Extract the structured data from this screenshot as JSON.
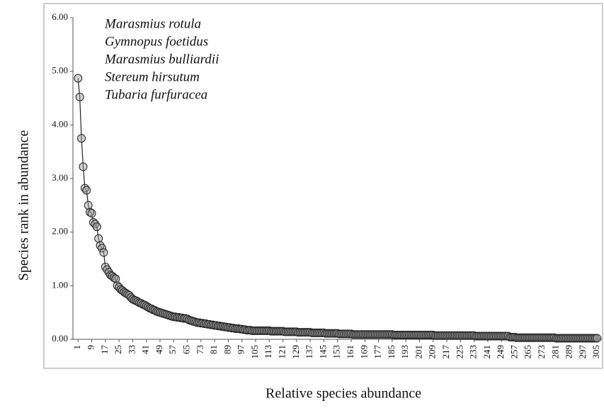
{
  "chart_data": {
    "type": "line",
    "x_label": "Relative species abundance",
    "y_label": "Species rank in abundance",
    "annotations": [
      "Marasmius rotula",
      "Gymnopus foetidus",
      "Marasmius bulliardii",
      "Stereum hirsutum",
      "Tubaria furfuracea"
    ],
    "xlim": [
      -2,
      307
    ],
    "ylim": [
      0,
      6
    ],
    "yticks": [
      {
        "value": 0,
        "label": "0.00"
      },
      {
        "value": 1,
        "label": "1.00"
      },
      {
        "value": 2,
        "label": "2.00"
      },
      {
        "value": 3,
        "label": "3.00"
      },
      {
        "value": 4,
        "label": "4.00"
      },
      {
        "value": 5,
        "label": "5.00"
      },
      {
        "value": 6,
        "label": "6.00"
      }
    ],
    "xticks": [
      1,
      9,
      17,
      25,
      33,
      41,
      49,
      57,
      65,
      73,
      81,
      89,
      97,
      105,
      113,
      121,
      129,
      137,
      145,
      153,
      161,
      169,
      177,
      185,
      193,
      201,
      209,
      217,
      225,
      233,
      241,
      249,
      257,
      265,
      273,
      281,
      289,
      297,
      305
    ],
    "grid": false,
    "series": [
      {
        "color": "#222222",
        "marker_color": "#999999",
        "x": [
          1,
          2,
          3,
          4,
          5,
          6,
          7,
          8,
          9,
          10,
          11,
          12,
          13,
          14,
          15,
          16,
          17,
          18,
          19,
          20,
          21,
          22,
          23,
          24,
          25,
          26,
          27,
          28,
          29,
          30,
          31,
          32,
          33,
          34,
          35,
          36,
          37,
          38,
          39,
          40,
          41,
          42,
          43,
          44,
          45,
          46,
          47,
          48,
          49,
          50,
          51,
          52,
          53,
          54,
          55,
          56,
          57,
          58,
          59,
          60,
          61,
          62,
          63,
          64,
          65,
          66,
          67,
          68,
          69,
          70,
          71,
          72,
          73,
          74,
          75,
          76,
          77,
          78,
          79,
          80,
          81,
          82,
          83,
          84,
          85,
          86,
          87,
          88,
          89,
          90,
          91,
          92,
          93,
          94,
          95,
          96,
          97,
          98,
          99,
          100,
          101,
          102,
          103,
          104,
          105,
          106,
          107,
          108,
          109,
          110,
          111,
          112,
          113,
          114,
          115,
          116,
          117,
          118,
          119,
          120,
          121,
          122,
          123,
          124,
          125,
          126,
          127,
          128,
          129,
          130,
          131,
          132,
          133,
          134,
          135,
          136,
          137,
          138,
          139,
          140,
          141,
          142,
          143,
          144,
          145,
          146,
          147,
          148,
          149,
          150,
          151,
          152,
          153,
          154,
          155,
          156,
          157,
          158,
          159,
          160,
          161,
          162,
          163,
          164,
          165,
          166,
          167,
          168,
          169,
          170,
          171,
          172,
          173,
          174,
          175,
          176,
          177,
          178,
          179,
          180,
          181,
          182,
          183,
          184,
          185,
          186,
          187,
          188,
          189,
          190,
          191,
          192,
          193,
          194,
          195,
          196,
          197,
          198,
          199,
          200,
          201,
          202,
          203,
          204,
          205,
          206,
          207,
          208,
          209,
          210,
          211,
          212,
          213,
          214,
          215,
          216,
          217,
          218,
          219,
          220,
          221,
          222,
          223,
          224,
          225,
          226,
          227,
          228,
          229,
          230,
          231,
          232,
          233,
          234,
          235,
          236,
          237,
          238,
          239,
          240,
          241,
          242,
          243,
          244,
          245,
          246,
          247,
          248,
          249,
          250,
          251,
          252,
          253,
          254,
          255,
          256,
          257,
          258,
          259,
          260,
          261,
          262,
          263,
          264,
          265,
          266,
          267,
          268,
          269,
          270,
          271,
          272,
          273,
          274,
          275,
          276,
          277,
          278,
          279,
          280,
          281,
          282,
          283,
          284,
          285,
          286,
          287,
          288,
          289,
          290,
          291,
          292,
          293,
          294,
          295,
          296,
          297,
          298,
          299,
          300,
          301,
          302,
          303,
          304,
          305
        ],
        "values": [
          4.87,
          4.52,
          3.75,
          3.22,
          2.82,
          2.78,
          2.5,
          2.37,
          2.35,
          2.18,
          2.15,
          2.1,
          1.88,
          1.75,
          1.7,
          1.62,
          1.35,
          1.3,
          1.25,
          1.2,
          1.18,
          1.15,
          1.13,
          1.0,
          0.97,
          0.93,
          0.91,
          0.88,
          0.86,
          0.84,
          0.82,
          0.78,
          0.75,
          0.73,
          0.72,
          0.7,
          0.68,
          0.67,
          0.65,
          0.64,
          0.62,
          0.6,
          0.58,
          0.57,
          0.55,
          0.54,
          0.52,
          0.51,
          0.5,
          0.49,
          0.48,
          0.47,
          0.46,
          0.45,
          0.44,
          0.43,
          0.42,
          0.42,
          0.41,
          0.41,
          0.4,
          0.4,
          0.39,
          0.39,
          0.38,
          0.36,
          0.35,
          0.34,
          0.33,
          0.32,
          0.31,
          0.31,
          0.3,
          0.3,
          0.29,
          0.29,
          0.28,
          0.28,
          0.27,
          0.27,
          0.26,
          0.26,
          0.25,
          0.25,
          0.24,
          0.24,
          0.23,
          0.23,
          0.22,
          0.22,
          0.21,
          0.21,
          0.2,
          0.2,
          0.2,
          0.19,
          0.19,
          0.18,
          0.18,
          0.17,
          0.17,
          0.17,
          0.16,
          0.16,
          0.16,
          0.16,
          0.16,
          0.16,
          0.16,
          0.16,
          0.16,
          0.16,
          0.16,
          0.15,
          0.15,
          0.15,
          0.15,
          0.15,
          0.15,
          0.15,
          0.15,
          0.14,
          0.14,
          0.14,
          0.14,
          0.14,
          0.14,
          0.14,
          0.14,
          0.13,
          0.13,
          0.13,
          0.13,
          0.13,
          0.13,
          0.13,
          0.13,
          0.12,
          0.12,
          0.12,
          0.12,
          0.12,
          0.12,
          0.12,
          0.12,
          0.11,
          0.11,
          0.11,
          0.11,
          0.11,
          0.11,
          0.11,
          0.11,
          0.1,
          0.1,
          0.1,
          0.1,
          0.1,
          0.1,
          0.1,
          0.1,
          0.09,
          0.09,
          0.09,
          0.09,
          0.09,
          0.09,
          0.09,
          0.09,
          0.09,
          0.09,
          0.09,
          0.09,
          0.09,
          0.09,
          0.09,
          0.09,
          0.09,
          0.09,
          0.09,
          0.09,
          0.09,
          0.09,
          0.09,
          0.09,
          0.08,
          0.08,
          0.08,
          0.08,
          0.08,
          0.08,
          0.08,
          0.08,
          0.08,
          0.08,
          0.08,
          0.08,
          0.08,
          0.08,
          0.08,
          0.08,
          0.08,
          0.08,
          0.08,
          0.08,
          0.08,
          0.08,
          0.08,
          0.08,
          0.07,
          0.07,
          0.07,
          0.07,
          0.07,
          0.07,
          0.07,
          0.07,
          0.07,
          0.07,
          0.07,
          0.07,
          0.07,
          0.07,
          0.07,
          0.07,
          0.07,
          0.07,
          0.07,
          0.07,
          0.07,
          0.07,
          0.07,
          0.07,
          0.06,
          0.06,
          0.06,
          0.06,
          0.06,
          0.06,
          0.06,
          0.06,
          0.06,
          0.06,
          0.06,
          0.06,
          0.06,
          0.06,
          0.06,
          0.06,
          0.06,
          0.06,
          0.06,
          0.06,
          0.04,
          0.04,
          0.04,
          0.04,
          0.03,
          0.03,
          0.03,
          0.03,
          0.03,
          0.03,
          0.03,
          0.03,
          0.03,
          0.03,
          0.03,
          0.03,
          0.03,
          0.03,
          0.03,
          0.03,
          0.03,
          0.03,
          0.03,
          0.03,
          0.03,
          0.03,
          0.03,
          0.02,
          0.02,
          0.02,
          0.02,
          0.02,
          0.02,
          0.02,
          0.02,
          0.02,
          0.02,
          0.02,
          0.02,
          0.02,
          0.02,
          0.02,
          0.02,
          0.02,
          0.02,
          0.02,
          0.02,
          0.02,
          0.02,
          0.02,
          0.02,
          0.02
        ]
      }
    ]
  }
}
